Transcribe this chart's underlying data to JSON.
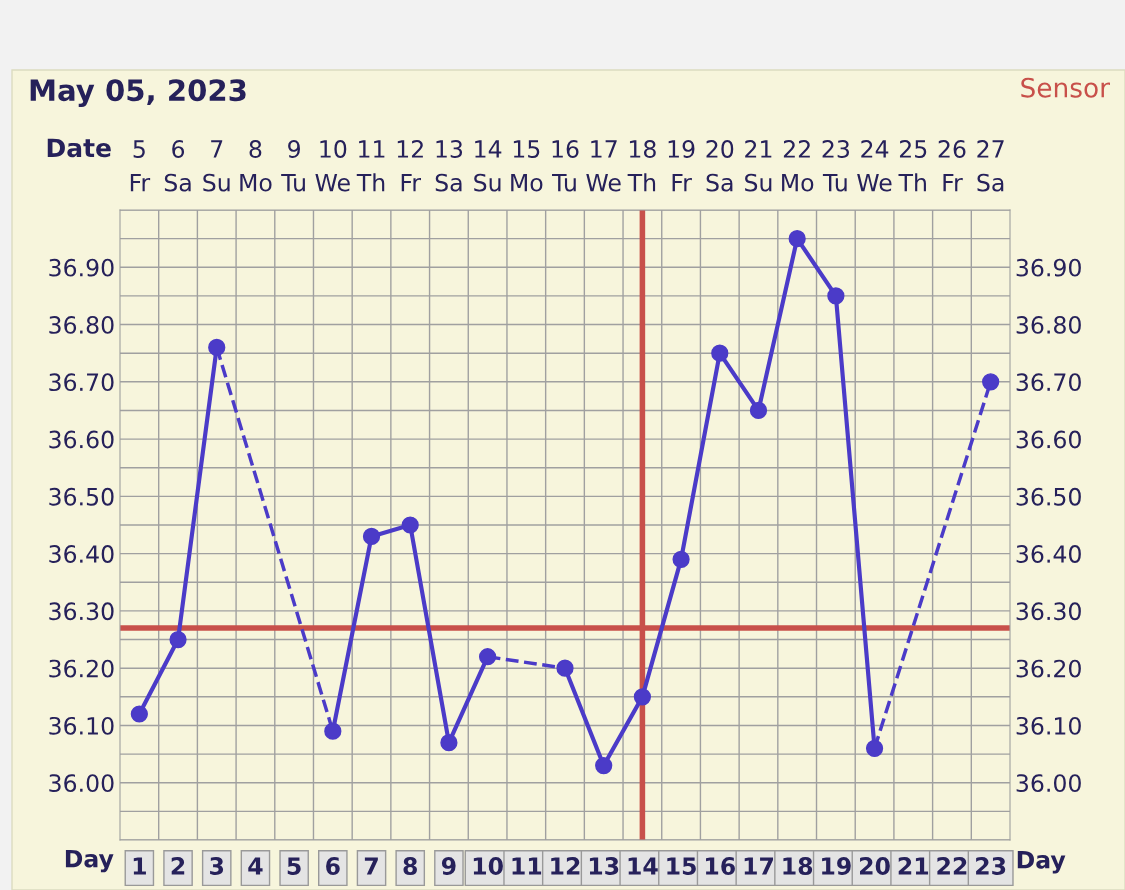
{
  "chart_data": {
    "type": "line",
    "title": "May 05, 2023",
    "annotations": [
      "Sensor"
    ],
    "xlabel": "Day",
    "x2label": "Date",
    "x": [
      1,
      2,
      3,
      4,
      5,
      6,
      7,
      8,
      9,
      10,
      11,
      12,
      13,
      14,
      15,
      16,
      17,
      18,
      19,
      20,
      21,
      22,
      23
    ],
    "xlim": [
      0.5,
      23.5
    ],
    "xticks": [
      1,
      2,
      3,
      4,
      5,
      6,
      7,
      8,
      9,
      10,
      11,
      12,
      13,
      14,
      15,
      16,
      17,
      18,
      19,
      20,
      21,
      22,
      23
    ],
    "x2lim": [
      4.5,
      27.5
    ],
    "x2ticks": [
      {
        "value": 5,
        "label": "5\nFr"
      },
      {
        "value": 6,
        "label": "6\nSa"
      },
      {
        "value": 7,
        "label": "7\nSu"
      },
      {
        "value": 8,
        "label": "8\nMo"
      },
      {
        "value": 9,
        "label": "9\nTu"
      },
      {
        "value": 10,
        "label": "10\nWe"
      },
      {
        "value": 11,
        "label": "11\nTh"
      },
      {
        "value": 12,
        "label": "12\nFr"
      },
      {
        "value": 13,
        "label": "13\nSa"
      },
      {
        "value": 14,
        "label": "14\nSu"
      },
      {
        "value": 15,
        "label": "15\nMo"
      },
      {
        "value": 16,
        "label": "16\nTu"
      },
      {
        "value": 17,
        "label": "17\nWe"
      },
      {
        "value": 18,
        "label": "18\nTh"
      },
      {
        "value": 19,
        "label": "19\nFr"
      },
      {
        "value": 20,
        "label": "20\nSa"
      },
      {
        "value": 21,
        "label": "21\nSu"
      },
      {
        "value": 22,
        "label": "22\nMo"
      },
      {
        "value": 23,
        "label": "23\nTu"
      },
      {
        "value": 24,
        "label": "24\nWe"
      },
      {
        "value": 25,
        "label": "25\nTh"
      },
      {
        "value": 26,
        "label": "26\nFr"
      },
      {
        "value": 27,
        "label": "27\nSa"
      }
    ],
    "ylim": [
      35.9,
      37.0
    ],
    "yticks": [
      {
        "value": 36.0,
        "label": "36.00"
      },
      {
        "value": 36.1,
        "label": "36.10"
      },
      {
        "value": 36.2,
        "label": "36.20"
      },
      {
        "value": 36.3,
        "label": "36.30"
      },
      {
        "value": 36.4,
        "label": "36.40"
      },
      {
        "value": 36.5,
        "label": "36.50"
      },
      {
        "value": 36.6,
        "label": "36.60"
      },
      {
        "value": 36.7,
        "label": "36.70"
      },
      {
        "value": 36.8,
        "label": "36.80"
      },
      {
        "value": 36.9,
        "label": "36.90"
      }
    ],
    "y2lim": [
      35.9,
      37.0
    ],
    "y2ticks": [
      {
        "value": 36.0,
        "label": "36.00"
      },
      {
        "value": 36.1,
        "label": "36.10"
      },
      {
        "value": 36.2,
        "label": "36.20"
      },
      {
        "value": 36.3,
        "label": "36.30"
      },
      {
        "value": 36.4,
        "label": "36.40"
      },
      {
        "value": 36.5,
        "label": "36.50"
      },
      {
        "value": 36.6,
        "label": "36.60"
      },
      {
        "value": 36.7,
        "label": "36.70"
      },
      {
        "value": 36.8,
        "label": "36.80"
      },
      {
        "value": 36.9,
        "label": "36.90"
      }
    ],
    "series": [
      {
        "color": "#4b3bc8",
        "values": [
          36.12,
          36.25,
          36.76,
          null,
          null,
          36.09,
          36.43,
          36.45,
          36.07,
          36.22,
          null,
          36.2,
          36.03,
          36.15,
          36.39,
          36.75,
          36.65,
          36.95,
          36.85,
          36.06,
          null,
          null,
          36.7
        ]
      }
    ],
    "ref_lines": [
      {
        "axis": "y",
        "value": 36.27,
        "color": "#c8504a"
      },
      {
        "axis": "x",
        "value": 14,
        "color": "#c8504a"
      }
    ],
    "grid": true,
    "marker": "circle",
    "line_style": "solid",
    "legend": false
  }
}
